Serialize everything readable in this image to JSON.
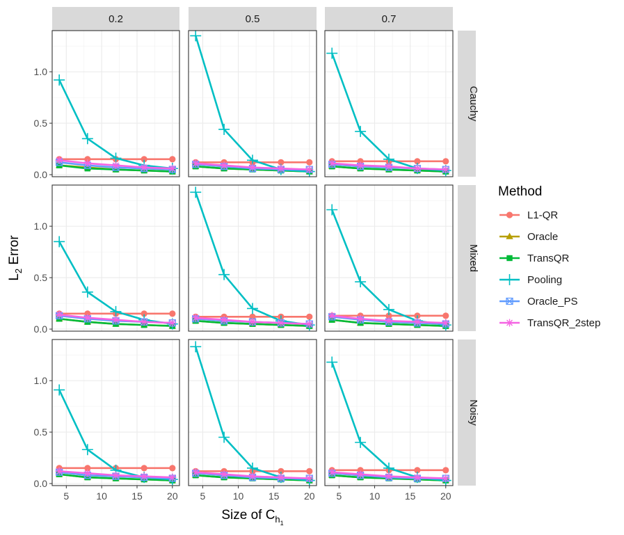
{
  "chart_data": {
    "type": "line",
    "facet_cols": [
      "0.2",
      "0.5",
      "0.7"
    ],
    "facet_rows": [
      "Cauchy",
      "Mixed",
      "Noisy"
    ],
    "xlabel_main": "Size of C",
    "xlabel_sub": "h",
    "xlabel_subsub": "1",
    "ylabel_main": "L",
    "ylabel_sub": "2",
    "ylabel_rest": " Error",
    "x": [
      4,
      8,
      12,
      16,
      20
    ],
    "xlim": [
      3,
      21
    ],
    "ylim": [
      -0.02,
      1.4
    ],
    "x_ticks": [
      5,
      10,
      15,
      20
    ],
    "x_tick_labels": [
      "5",
      "10",
      "15",
      "20"
    ],
    "y_ticks": [
      0,
      0.5,
      1.0
    ],
    "y_tick_labels": [
      "0.0",
      "0.5",
      "1.0"
    ],
    "grid": true,
    "legend_title": "Method",
    "legend_position": "right",
    "methods": [
      {
        "name": "L1-QR",
        "color": "#F8766D",
        "marker": "circle"
      },
      {
        "name": "Oracle",
        "color": "#B79F00",
        "marker": "triangle"
      },
      {
        "name": "TransQR",
        "color": "#00BA38",
        "marker": "square"
      },
      {
        "name": "Pooling",
        "color": "#00BFC4",
        "marker": "plus"
      },
      {
        "name": "Oracle_PS",
        "color": "#619CFF",
        "marker": "boxcross"
      },
      {
        "name": "TransQR_2step",
        "color": "#F564E3",
        "marker": "asterisk"
      }
    ],
    "panels": [
      {
        "row": "Cauchy",
        "col": "0.2",
        "series": {
          "L1-QR": [
            0.15,
            0.15,
            0.15,
            0.15,
            0.15
          ],
          "Oracle": [
            0.09,
            0.07,
            0.05,
            0.04,
            0.03
          ],
          "TransQR": [
            0.09,
            0.06,
            0.05,
            0.04,
            0.03
          ],
          "Pooling": [
            0.92,
            0.35,
            0.16,
            0.09,
            0.06
          ],
          "Oracle_PS": [
            0.12,
            0.09,
            0.07,
            0.06,
            0.05
          ],
          "TransQR_2step": [
            0.14,
            0.11,
            0.09,
            0.07,
            0.06
          ]
        }
      },
      {
        "row": "Cauchy",
        "col": "0.5",
        "series": {
          "L1-QR": [
            0.12,
            0.12,
            0.12,
            0.12,
            0.12
          ],
          "Oracle": [
            0.08,
            0.06,
            0.05,
            0.04,
            0.03
          ],
          "TransQR": [
            0.08,
            0.06,
            0.05,
            0.04,
            0.03
          ],
          "Pooling": [
            1.35,
            0.44,
            0.14,
            0.05,
            0.03
          ],
          "Oracle_PS": [
            0.1,
            0.08,
            0.06,
            0.05,
            0.05
          ],
          "TransQR_2step": [
            0.11,
            0.09,
            0.07,
            0.06,
            0.05
          ]
        }
      },
      {
        "row": "Cauchy",
        "col": "0.7",
        "series": {
          "L1-QR": [
            0.13,
            0.13,
            0.13,
            0.13,
            0.13
          ],
          "Oracle": [
            0.08,
            0.06,
            0.05,
            0.04,
            0.03
          ],
          "TransQR": [
            0.08,
            0.06,
            0.05,
            0.04,
            0.03
          ],
          "Pooling": [
            1.18,
            0.42,
            0.15,
            0.06,
            0.04
          ],
          "Oracle_PS": [
            0.1,
            0.08,
            0.07,
            0.06,
            0.05
          ],
          "TransQR_2step": [
            0.11,
            0.09,
            0.08,
            0.06,
            0.05
          ]
        }
      },
      {
        "row": "Mixed",
        "col": "0.2",
        "series": {
          "L1-QR": [
            0.15,
            0.15,
            0.15,
            0.15,
            0.15
          ],
          "Oracle": [
            0.1,
            0.07,
            0.05,
            0.04,
            0.03
          ],
          "TransQR": [
            0.1,
            0.07,
            0.05,
            0.04,
            0.03
          ],
          "Pooling": [
            0.85,
            0.36,
            0.17,
            0.09,
            0.05
          ],
          "Oracle_PS": [
            0.13,
            0.1,
            0.08,
            0.07,
            0.06
          ],
          "TransQR_2step": [
            0.14,
            0.11,
            0.09,
            0.07,
            0.06
          ]
        }
      },
      {
        "row": "Mixed",
        "col": "0.5",
        "series": {
          "L1-QR": [
            0.12,
            0.12,
            0.12,
            0.12,
            0.12
          ],
          "Oracle": [
            0.08,
            0.06,
            0.05,
            0.04,
            0.03
          ],
          "TransQR": [
            0.08,
            0.06,
            0.05,
            0.04,
            0.03
          ],
          "Pooling": [
            1.33,
            0.53,
            0.2,
            0.08,
            0.04
          ],
          "Oracle_PS": [
            0.1,
            0.08,
            0.07,
            0.06,
            0.05
          ],
          "TransQR_2step": [
            0.11,
            0.09,
            0.07,
            0.06,
            0.05
          ]
        }
      },
      {
        "row": "Mixed",
        "col": "0.7",
        "series": {
          "L1-QR": [
            0.13,
            0.13,
            0.13,
            0.13,
            0.13
          ],
          "Oracle": [
            0.09,
            0.06,
            0.05,
            0.04,
            0.03
          ],
          "TransQR": [
            0.09,
            0.06,
            0.05,
            0.04,
            0.03
          ],
          "Pooling": [
            1.16,
            0.46,
            0.19,
            0.08,
            0.04
          ],
          "Oracle_PS": [
            0.12,
            0.09,
            0.07,
            0.06,
            0.05
          ],
          "TransQR_2step": [
            0.13,
            0.1,
            0.08,
            0.07,
            0.06
          ]
        }
      },
      {
        "row": "Noisy",
        "col": "0.2",
        "series": {
          "L1-QR": [
            0.15,
            0.15,
            0.15,
            0.15,
            0.15
          ],
          "Oracle": [
            0.09,
            0.06,
            0.05,
            0.04,
            0.03
          ],
          "TransQR": [
            0.09,
            0.06,
            0.05,
            0.04,
            0.03
          ],
          "Pooling": [
            0.91,
            0.33,
            0.13,
            0.06,
            0.04
          ],
          "Oracle_PS": [
            0.11,
            0.08,
            0.07,
            0.06,
            0.05
          ],
          "TransQR_2step": [
            0.12,
            0.1,
            0.08,
            0.07,
            0.06
          ]
        }
      },
      {
        "row": "Noisy",
        "col": "0.5",
        "series": {
          "L1-QR": [
            0.12,
            0.12,
            0.12,
            0.12,
            0.12
          ],
          "Oracle": [
            0.08,
            0.06,
            0.05,
            0.04,
            0.03
          ],
          "TransQR": [
            0.08,
            0.06,
            0.05,
            0.04,
            0.03
          ],
          "Pooling": [
            1.33,
            0.45,
            0.15,
            0.06,
            0.03
          ],
          "Oracle_PS": [
            0.1,
            0.08,
            0.06,
            0.05,
            0.05
          ],
          "TransQR_2step": [
            0.11,
            0.09,
            0.07,
            0.06,
            0.05
          ]
        }
      },
      {
        "row": "Noisy",
        "col": "0.7",
        "series": {
          "L1-QR": [
            0.13,
            0.13,
            0.13,
            0.13,
            0.13
          ],
          "Oracle": [
            0.08,
            0.06,
            0.05,
            0.04,
            0.03
          ],
          "TransQR": [
            0.08,
            0.06,
            0.05,
            0.04,
            0.03
          ],
          "Pooling": [
            1.18,
            0.4,
            0.15,
            0.06,
            0.03
          ],
          "Oracle_PS": [
            0.1,
            0.08,
            0.06,
            0.05,
            0.05
          ],
          "TransQR_2step": [
            0.11,
            0.09,
            0.07,
            0.06,
            0.05
          ]
        }
      }
    ]
  }
}
